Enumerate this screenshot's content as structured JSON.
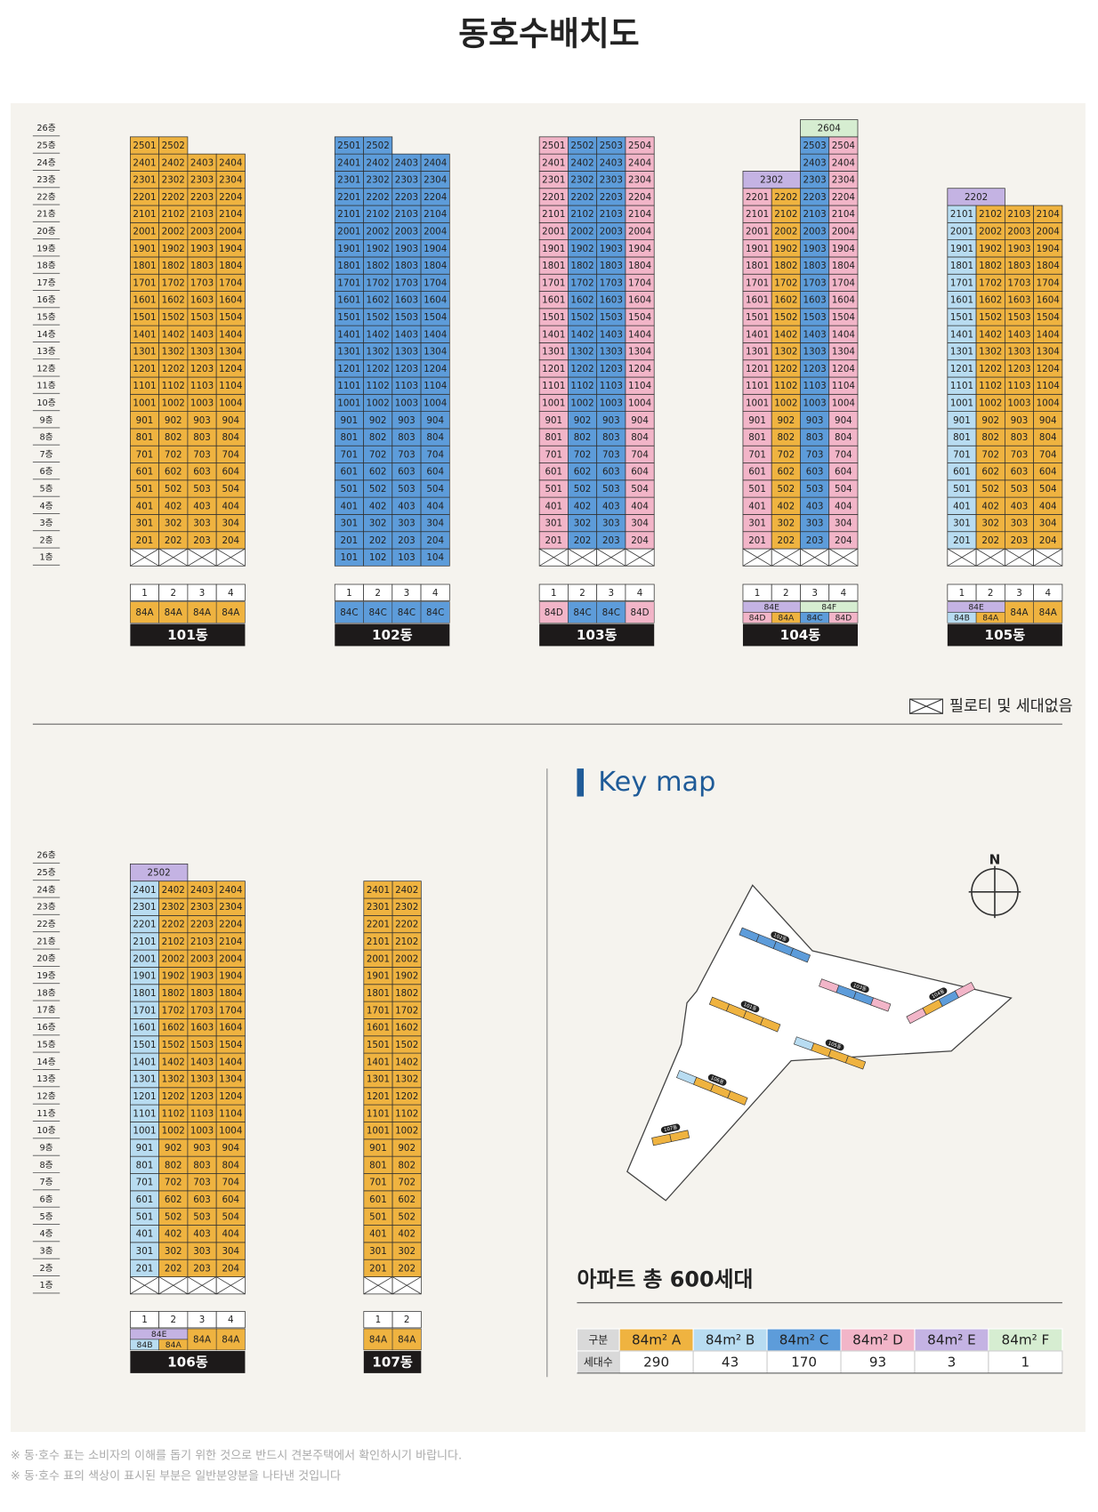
{
  "title": "동호수배치도",
  "floors": [
    "26층",
    "25층",
    "24층",
    "23층",
    "22층",
    "21층",
    "20층",
    "19층",
    "18층",
    "17층",
    "16층",
    "15층",
    "14층",
    "13층",
    "12층",
    "11층",
    "10층",
    "9층",
    "8층",
    "7층",
    "6층",
    "5층",
    "4층",
    "3층",
    "2층",
    "1층"
  ],
  "colors": {
    "84A": "#efb340",
    "84B": "#b8dcf1",
    "84C": "#5d9cda",
    "84D": "#f2b5c8",
    "84E": "#c4b3e3",
    "84F": "#d6edd1"
  },
  "buildings": [
    {
      "name": "101동",
      "piloti": true,
      "lines": [
        "1",
        "2",
        "3",
        "4"
      ],
      "types": [
        "84A",
        "84A",
        "84A",
        "84A"
      ],
      "rows": [
        [
          "201",
          "202",
          "203",
          "204"
        ],
        [
          "301",
          "302",
          "303",
          "304"
        ],
        [
          "401",
          "402",
          "403",
          "404"
        ],
        [
          "501",
          "502",
          "503",
          "504"
        ],
        [
          "601",
          "602",
          "603",
          "604"
        ],
        [
          "701",
          "702",
          "703",
          "704"
        ],
        [
          "801",
          "802",
          "803",
          "804"
        ],
        [
          "901",
          "902",
          "903",
          "904"
        ],
        [
          "1001",
          "1002",
          "1003",
          "1004"
        ],
        [
          "1101",
          "1102",
          "1103",
          "1104"
        ],
        [
          "1201",
          "1202",
          "1203",
          "1204"
        ],
        [
          "1301",
          "1302",
          "1303",
          "1304"
        ],
        [
          "1401",
          "1402",
          "1403",
          "1404"
        ],
        [
          "1501",
          "1502",
          "1503",
          "1504"
        ],
        [
          "1601",
          "1602",
          "1603",
          "1604"
        ],
        [
          "1701",
          "1702",
          "1703",
          "1704"
        ],
        [
          "1801",
          "1802",
          "1803",
          "1804"
        ],
        [
          "1901",
          "1902",
          "1903",
          "1904"
        ],
        [
          "2001",
          "2002",
          "2003",
          "2004"
        ],
        [
          "2101",
          "2102",
          "2103",
          "2104"
        ],
        [
          "2201",
          "2202",
          "2203",
          "2204"
        ],
        [
          "2301",
          "2302",
          "2303",
          "2304"
        ],
        [
          "2401",
          "2402",
          "2403",
          "2404"
        ],
        [
          "2501",
          "2502"
        ]
      ]
    },
    {
      "name": "102동",
      "piloti": false,
      "lines": [
        "1",
        "2",
        "3",
        "4"
      ],
      "types": [
        "84C",
        "84C",
        "84C",
        "84C"
      ],
      "rows": [
        [
          "101",
          "102",
          "103",
          "104"
        ],
        [
          "201",
          "202",
          "203",
          "204"
        ],
        [
          "301",
          "302",
          "303",
          "304"
        ],
        [
          "401",
          "402",
          "403",
          "404"
        ],
        [
          "501",
          "502",
          "503",
          "504"
        ],
        [
          "601",
          "602",
          "603",
          "604"
        ],
        [
          "701",
          "702",
          "703",
          "704"
        ],
        [
          "801",
          "802",
          "803",
          "804"
        ],
        [
          "901",
          "902",
          "903",
          "904"
        ],
        [
          "1001",
          "1002",
          "1003",
          "1004"
        ],
        [
          "1101",
          "1102",
          "1103",
          "1104"
        ],
        [
          "1201",
          "1202",
          "1203",
          "1204"
        ],
        [
          "1301",
          "1302",
          "1303",
          "1304"
        ],
        [
          "1401",
          "1402",
          "1403",
          "1404"
        ],
        [
          "1501",
          "1502",
          "1503",
          "1504"
        ],
        [
          "1601",
          "1602",
          "1603",
          "1604"
        ],
        [
          "1701",
          "1702",
          "1703",
          "1704"
        ],
        [
          "1801",
          "1802",
          "1803",
          "1804"
        ],
        [
          "1901",
          "1902",
          "1903",
          "1904"
        ],
        [
          "2001",
          "2002",
          "2003",
          "2004"
        ],
        [
          "2101",
          "2102",
          "2103",
          "2104"
        ],
        [
          "2201",
          "2202",
          "2203",
          "2204"
        ],
        [
          "2301",
          "2302",
          "2303",
          "2304"
        ],
        [
          "2401",
          "2402",
          "2403",
          "2404"
        ],
        [
          "2501",
          "2502"
        ]
      ]
    },
    {
      "name": "103동",
      "piloti": true,
      "lines": [
        "1",
        "2",
        "3",
        "4"
      ],
      "types": [
        "84D",
        "84C",
        "84C",
        "84D"
      ],
      "rows": [
        [
          "201",
          "202",
          "203",
          "204"
        ],
        [
          "301",
          "302",
          "303",
          "304"
        ],
        [
          "401",
          "402",
          "403",
          "404"
        ],
        [
          "501",
          "502",
          "503",
          "504"
        ],
        [
          "601",
          "602",
          "603",
          "604"
        ],
        [
          "701",
          "702",
          "703",
          "704"
        ],
        [
          "801",
          "802",
          "803",
          "804"
        ],
        [
          "901",
          "902",
          "903",
          "904"
        ],
        [
          "1001",
          "1002",
          "1003",
          "1004"
        ],
        [
          "1101",
          "1102",
          "1103",
          "1104"
        ],
        [
          "1201",
          "1202",
          "1203",
          "1204"
        ],
        [
          "1301",
          "1302",
          "1303",
          "1304"
        ],
        [
          "1401",
          "1402",
          "1403",
          "1404"
        ],
        [
          "1501",
          "1502",
          "1503",
          "1504"
        ],
        [
          "1601",
          "1602",
          "1603",
          "1604"
        ],
        [
          "1701",
          "1702",
          "1703",
          "1704"
        ],
        [
          "1801",
          "1802",
          "1803",
          "1804"
        ],
        [
          "1901",
          "1902",
          "1903",
          "1904"
        ],
        [
          "2001",
          "2002",
          "2003",
          "2004"
        ],
        [
          "2101",
          "2102",
          "2103",
          "2104"
        ],
        [
          "2201",
          "2202",
          "2203",
          "2204"
        ],
        [
          "2301",
          "2302",
          "2303",
          "2304"
        ],
        [
          "2401",
          "2402",
          "2403",
          "2404"
        ],
        [
          "2501",
          "2502",
          "2503",
          "2504"
        ]
      ]
    },
    {
      "name": "104동",
      "piloti": true,
      "lines": [
        "1",
        "2",
        "3",
        "4"
      ],
      "types": [
        "84D",
        "84A",
        "84C",
        "84D"
      ],
      "upper_types": [
        {
          "label": "84E",
          "span": 2
        },
        {
          "label": "84F",
          "span": 2
        }
      ],
      "rows": [
        [
          "201",
          "202",
          "203",
          "204"
        ],
        [
          "301",
          "302",
          "303",
          "304"
        ],
        [
          "401",
          "402",
          "403",
          "404"
        ],
        [
          "501",
          "502",
          "503",
          "504"
        ],
        [
          "601",
          "602",
          "603",
          "604"
        ],
        [
          "701",
          "702",
          "703",
          "704"
        ],
        [
          "801",
          "802",
          "803",
          "804"
        ],
        [
          "901",
          "902",
          "903",
          "904"
        ],
        [
          "1001",
          "1002",
          "1003",
          "1004"
        ],
        [
          "1101",
          "1102",
          "1103",
          "1104"
        ],
        [
          "1201",
          "1202",
          "1203",
          "1204"
        ],
        [
          "1301",
          "1302",
          "1303",
          "1304"
        ],
        [
          "1401",
          "1402",
          "1403",
          "1404"
        ],
        [
          "1501",
          "1502",
          "1503",
          "1504"
        ],
        [
          "1601",
          "1602",
          "1603",
          "1604"
        ],
        [
          "1701",
          "1702",
          "1703",
          "1704"
        ],
        [
          "1801",
          "1802",
          "1803",
          "1804"
        ],
        [
          "1901",
          "1902",
          "1903",
          "1904"
        ],
        [
          "2001",
          "2002",
          "2003",
          "2004"
        ],
        [
          "2101",
          "2102",
          "2103",
          "2104"
        ],
        [
          "2201",
          "2202",
          "2203",
          "2204"
        ],
        [
          {
            "unit": "2302",
            "span": 2,
            "type": "84E"
          },
          "2303",
          "2304"
        ],
        [
          null,
          null,
          "2403",
          "2404"
        ],
        [
          null,
          null,
          "2503",
          "2504"
        ],
        [
          null,
          null,
          {
            "unit": "2604",
            "span": 2,
            "type": "84F"
          }
        ]
      ]
    },
    {
      "name": "105동",
      "piloti": true,
      "lines": [
        "1",
        "2",
        "3",
        "4"
      ],
      "types": [
        "84B",
        "84A",
        "84A",
        "84A"
      ],
      "upper_types": [
        {
          "label": "84E",
          "span": 2
        }
      ],
      "rows": [
        [
          "201",
          "202",
          "203",
          "204"
        ],
        [
          "301",
          "302",
          "303",
          "304"
        ],
        [
          "401",
          "402",
          "403",
          "404"
        ],
        [
          "501",
          "502",
          "503",
          "504"
        ],
        [
          "601",
          "602",
          "603",
          "604"
        ],
        [
          "701",
          "702",
          "703",
          "704"
        ],
        [
          "801",
          "802",
          "803",
          "804"
        ],
        [
          "901",
          "902",
          "903",
          "904"
        ],
        [
          "1001",
          "1002",
          "1003",
          "1004"
        ],
        [
          "1101",
          "1102",
          "1103",
          "1104"
        ],
        [
          "1201",
          "1202",
          "1203",
          "1204"
        ],
        [
          "1301",
          "1302",
          "1303",
          "1304"
        ],
        [
          "1401",
          "1402",
          "1403",
          "1404"
        ],
        [
          "1501",
          "1502",
          "1503",
          "1504"
        ],
        [
          "1601",
          "1602",
          "1603",
          "1604"
        ],
        [
          "1701",
          "1702",
          "1703",
          "1704"
        ],
        [
          "1801",
          "1802",
          "1803",
          "1804"
        ],
        [
          "1901",
          "1902",
          "1903",
          "1904"
        ],
        [
          "2001",
          "2002",
          "2003",
          "2004"
        ],
        [
          "2101",
          "2102",
          "2103",
          "2104"
        ],
        [
          {
            "unit": "2202",
            "span": 2,
            "type": "84E"
          }
        ]
      ]
    },
    {
      "name": "106동",
      "piloti": true,
      "lines": [
        "1",
        "2",
        "3",
        "4"
      ],
      "types": [
        "84B",
        "84A",
        "84A",
        "84A"
      ],
      "upper_types": [
        {
          "label": "84E",
          "span": 2
        }
      ],
      "rows": [
        [
          "201",
          "202",
          "203",
          "204"
        ],
        [
          "301",
          "302",
          "303",
          "304"
        ],
        [
          "401",
          "402",
          "403",
          "404"
        ],
        [
          "501",
          "502",
          "503",
          "504"
        ],
        [
          "601",
          "602",
          "603",
          "604"
        ],
        [
          "701",
          "702",
          "703",
          "704"
        ],
        [
          "801",
          "802",
          "803",
          "804"
        ],
        [
          "901",
          "902",
          "903",
          "904"
        ],
        [
          "1001",
          "1002",
          "1003",
          "1004"
        ],
        [
          "1101",
          "1102",
          "1103",
          "1104"
        ],
        [
          "1201",
          "1202",
          "1203",
          "1204"
        ],
        [
          "1301",
          "1302",
          "1303",
          "1304"
        ],
        [
          "1401",
          "1402",
          "1403",
          "1404"
        ],
        [
          "1501",
          "1502",
          "1503",
          "1504"
        ],
        [
          "1601",
          "1602",
          "1603",
          "1604"
        ],
        [
          "1701",
          "1702",
          "1703",
          "1704"
        ],
        [
          "1801",
          "1802",
          "1803",
          "1804"
        ],
        [
          "1901",
          "1902",
          "1903",
          "1904"
        ],
        [
          "2001",
          "2002",
          "2003",
          "2004"
        ],
        [
          "2101",
          "2102",
          "2103",
          "2104"
        ],
        [
          "2201",
          "2202",
          "2203",
          "2204"
        ],
        [
          "2301",
          "2302",
          "2303",
          "2304"
        ],
        [
          "2401",
          "2402",
          "2403",
          "2404"
        ],
        [
          {
            "unit": "2502",
            "span": 2,
            "type": "84E"
          }
        ]
      ]
    },
    {
      "name": "107동",
      "piloti": true,
      "lines": [
        "1",
        "2"
      ],
      "types": [
        "84A",
        "84A"
      ],
      "rows": [
        [
          "201",
          "202"
        ],
        [
          "301",
          "302"
        ],
        [
          "401",
          "402"
        ],
        [
          "501",
          "502"
        ],
        [
          "601",
          "602"
        ],
        [
          "701",
          "702"
        ],
        [
          "801",
          "802"
        ],
        [
          "901",
          "902"
        ],
        [
          "1001",
          "1002"
        ],
        [
          "1101",
          "1102"
        ],
        [
          "1201",
          "1202"
        ],
        [
          "1301",
          "1302"
        ],
        [
          "1401",
          "1402"
        ],
        [
          "1501",
          "1502"
        ],
        [
          "1601",
          "1602"
        ],
        [
          "1701",
          "1702"
        ],
        [
          "1801",
          "1802"
        ],
        [
          "1901",
          "1902"
        ],
        [
          "2001",
          "2002"
        ],
        [
          "2101",
          "2102"
        ],
        [
          "2201",
          "2202"
        ],
        [
          "2301",
          "2302"
        ],
        [
          "2401",
          "2402"
        ]
      ]
    }
  ],
  "legend": "필로티 및 세대없음",
  "keymap": {
    "title": "Key map",
    "north": "N"
  },
  "total_label": "아파트 총 600세대",
  "table": {
    "header": "구분",
    "row_label": "세대수",
    "columns": [
      {
        "label": "84m² A",
        "type": "84A",
        "count": 290
      },
      {
        "label": "84m² B",
        "type": "84B",
        "count": 43
      },
      {
        "label": "84m² C",
        "type": "84C",
        "count": 170
      },
      {
        "label": "84m² D",
        "type": "84D",
        "count": 93
      },
      {
        "label": "84m² E",
        "type": "84E",
        "count": 3
      },
      {
        "label": "84m² F",
        "type": "84F",
        "count": 1
      }
    ]
  },
  "notes": [
    "※ 동·호수 표는 소비자의 이해를 돕기 위한 것으로 반드시 견본주택에서 확인하시기 바랍니다.",
    "※ 동·호수 표의 색상이 표시된 부분은 일반분양분을 나타낸 것입니다"
  ]
}
